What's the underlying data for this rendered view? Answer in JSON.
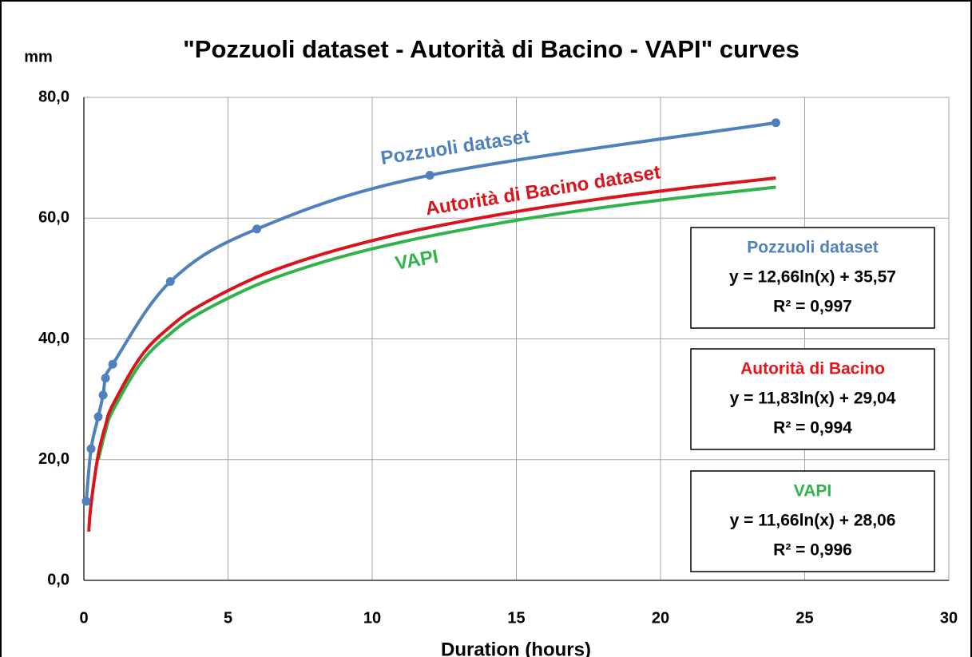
{
  "chart_data": {
    "type": "line",
    "title": "\"Pozzuoli  dataset - Autorità di Bacino - VAPI\" curves",
    "y_label": "mm",
    "x_label": "Duration (hours)",
    "xlim": [
      0,
      30
    ],
    "xticks": [
      0,
      5,
      10,
      15,
      20,
      25,
      30
    ],
    "ylim": [
      0,
      80
    ],
    "yticks": [
      {
        "value": 0,
        "label": "0,0"
      },
      {
        "value": 20,
        "label": "20,0"
      },
      {
        "value": 40,
        "label": "40,0"
      },
      {
        "value": 60,
        "label": "60,0"
      },
      {
        "value": 80,
        "label": "80,0"
      }
    ],
    "grid": true,
    "series": [
      {
        "name": "Pozzuoli dataset",
        "color": "#4f81bd",
        "markers": true,
        "x": [
          0.083,
          0.25,
          0.5,
          0.667,
          0.75,
          1,
          3,
          6,
          12,
          24
        ],
        "values": [
          13.1,
          21.8,
          27.1,
          30.7,
          33.5,
          35.8,
          49.5,
          58.2,
          67.1,
          75.8
        ]
      },
      {
        "name": "Autorità di Bacino dataset",
        "color": "#d9141a",
        "markers": false,
        "x": [
          0.17,
          0.25,
          0.5,
          0.75,
          1,
          2,
          3,
          4,
          6,
          8,
          10,
          12,
          15,
          18,
          21,
          24
        ],
        "values": [
          8.08,
          12.64,
          20.84,
          25.64,
          29.04,
          37.24,
          42.04,
          45.44,
          50.24,
          53.64,
          56.28,
          58.44,
          61.08,
          63.23,
          65.06,
          66.64
        ]
      },
      {
        "name": "VAPI",
        "color": "#2fb34a",
        "markers": false,
        "x": [
          0.5,
          0.75,
          1,
          2,
          3,
          4,
          6,
          8,
          10,
          12,
          15,
          18,
          21,
          24
        ],
        "values": [
          19.98,
          24.7,
          28.06,
          36.14,
          40.87,
          44.22,
          48.95,
          52.3,
          54.91,
          57.03,
          59.64,
          61.76,
          63.56,
          65.12
        ]
      }
    ],
    "fit_boxes": [
      {
        "title": "Pozzuoli dataset",
        "equation": "y = 12,66ln(x)  + 35,57",
        "r2": "R² = 0,997",
        "color": "#4f81bd"
      },
      {
        "title": "Autorità di Bacino",
        "equation": "y = 11,83ln(x)  + 29,04",
        "r2": "R² = 0,994",
        "color": "#e8141a"
      },
      {
        "title": "VAPI",
        "equation": "y = 11,66ln(x)  + 28,06",
        "r2": "R² = 0,996",
        "color": "#2fb34a"
      }
    ]
  }
}
